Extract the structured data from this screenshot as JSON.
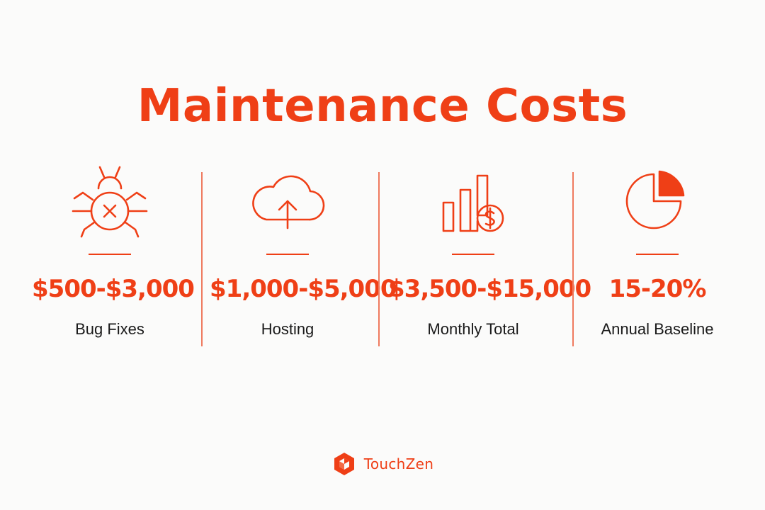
{
  "title": "Maintenance Costs",
  "accent_color": "#ef3f16",
  "stats": [
    {
      "icon": "bug-icon",
      "value": "$500-$3,000",
      "label": "Bug Fixes"
    },
    {
      "icon": "cloud-upload-icon",
      "value": "$1,000-$5,000",
      "label": "Hosting"
    },
    {
      "icon": "bar-chart-dollar-icon",
      "value": "$3,500-$15,000",
      "label": "Monthly Total"
    },
    {
      "icon": "pie-chart-icon",
      "value": "15-20%",
      "label": "Annual Baseline"
    }
  ],
  "brand": {
    "logo_icon": "touchzen-logo-icon",
    "name": "TouchZen"
  }
}
